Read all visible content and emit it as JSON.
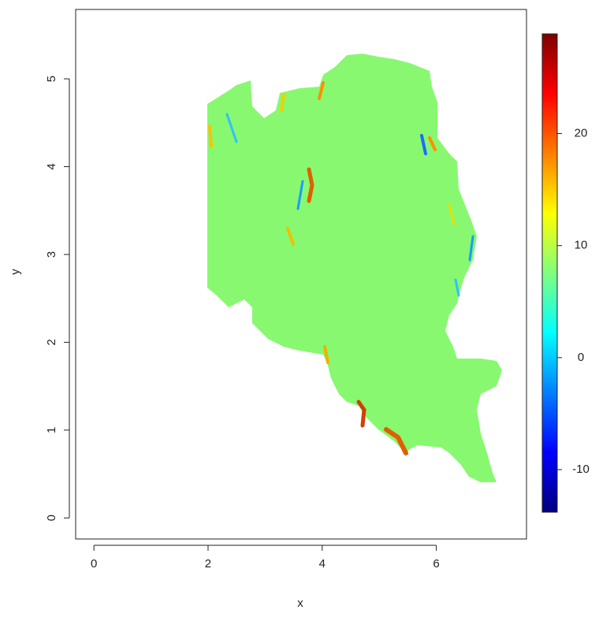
{
  "chart_data": {
    "type": "raster",
    "x_label": "x",
    "y_label": "y",
    "xlim": [
      -0.32,
      7.58
    ],
    "xticks": [
      0,
      2,
      4,
      6
    ],
    "ylim": [
      -0.24,
      5.79
    ],
    "yticks": [
      0,
      1,
      2,
      3,
      4,
      5
    ],
    "zlim": [
      -13.8,
      28.9
    ],
    "zticks": [
      -10,
      0,
      10,
      20
    ],
    "colors": [
      "#00007f",
      "#0000ff",
      "#007fff",
      "#00ffff",
      "#7fff7f",
      "#ffff00",
      "#ff7f00",
      "#ff0000",
      "#7f0000"
    ],
    "fill_color": "#88f870"
  }
}
